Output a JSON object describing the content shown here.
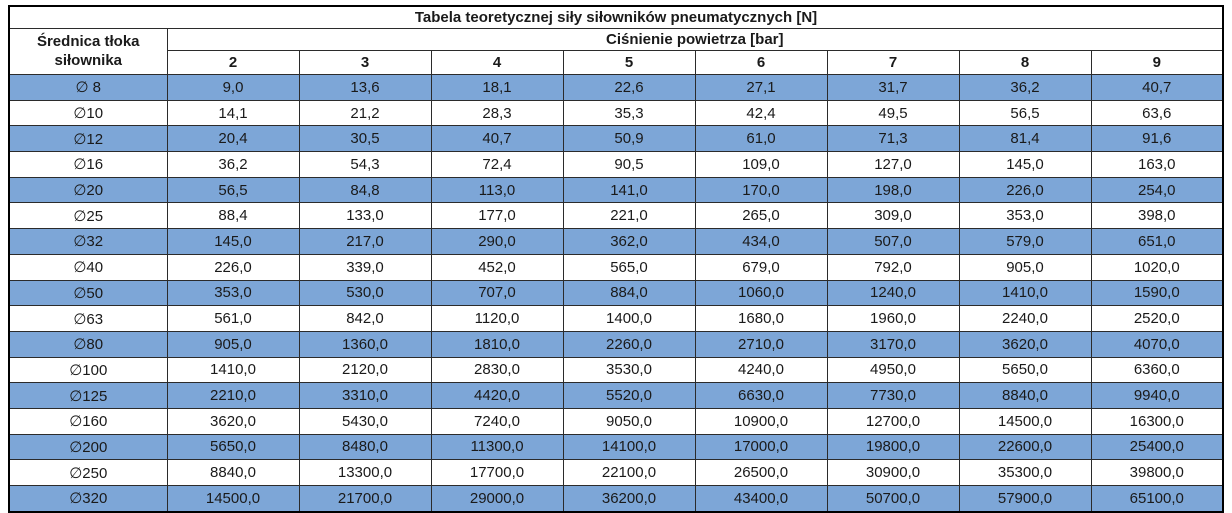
{
  "colors": {
    "highlight_row_bg": "#7DA6D7",
    "plain_row_bg": "#FFFFFF",
    "border": "#2B2B2B",
    "text": "#1A1A1A"
  },
  "chart_data": {
    "type": "table",
    "title": "Tabela teoretycznej siły siłowników pneumatycznych [N]",
    "row_header_label": "Średnica tłoka siłownika",
    "column_group_label": "Ciśnienie powietrza [bar]",
    "columns": [
      "2",
      "3",
      "4",
      "5",
      "6",
      "7",
      "8",
      "9"
    ],
    "rows": [
      {
        "label": "∅ 8",
        "values": [
          "9,0",
          "13,6",
          "18,1",
          "22,6",
          "27,1",
          "31,7",
          "36,2",
          "40,7"
        ]
      },
      {
        "label": "∅10",
        "values": [
          "14,1",
          "21,2",
          "28,3",
          "35,3",
          "42,4",
          "49,5",
          "56,5",
          "63,6"
        ]
      },
      {
        "label": "∅12",
        "values": [
          "20,4",
          "30,5",
          "40,7",
          "50,9",
          "61,0",
          "71,3",
          "81,4",
          "91,6"
        ]
      },
      {
        "label": "∅16",
        "values": [
          "36,2",
          "54,3",
          "72,4",
          "90,5",
          "109,0",
          "127,0",
          "145,0",
          "163,0"
        ]
      },
      {
        "label": "∅20",
        "values": [
          "56,5",
          "84,8",
          "113,0",
          "141,0",
          "170,0",
          "198,0",
          "226,0",
          "254,0"
        ]
      },
      {
        "label": "∅25",
        "values": [
          "88,4",
          "133,0",
          "177,0",
          "221,0",
          "265,0",
          "309,0",
          "353,0",
          "398,0"
        ]
      },
      {
        "label": "∅32",
        "values": [
          "145,0",
          "217,0",
          "290,0",
          "362,0",
          "434,0",
          "507,0",
          "579,0",
          "651,0"
        ]
      },
      {
        "label": "∅40",
        "values": [
          "226,0",
          "339,0",
          "452,0",
          "565,0",
          "679,0",
          "792,0",
          "905,0",
          "1020,0"
        ]
      },
      {
        "label": "∅50",
        "values": [
          "353,0",
          "530,0",
          "707,0",
          "884,0",
          "1060,0",
          "1240,0",
          "1410,0",
          "1590,0"
        ]
      },
      {
        "label": "∅63",
        "values": [
          "561,0",
          "842,0",
          "1120,0",
          "1400,0",
          "1680,0",
          "1960,0",
          "2240,0",
          "2520,0"
        ]
      },
      {
        "label": "∅80",
        "values": [
          "905,0",
          "1360,0",
          "1810,0",
          "2260,0",
          "2710,0",
          "3170,0",
          "3620,0",
          "4070,0"
        ]
      },
      {
        "label": "∅100",
        "values": [
          "1410,0",
          "2120,0",
          "2830,0",
          "3530,0",
          "4240,0",
          "4950,0",
          "5650,0",
          "6360,0"
        ]
      },
      {
        "label": "∅125",
        "values": [
          "2210,0",
          "3310,0",
          "4420,0",
          "5520,0",
          "6630,0",
          "7730,0",
          "8840,0",
          "9940,0"
        ]
      },
      {
        "label": "∅160",
        "values": [
          "3620,0",
          "5430,0",
          "7240,0",
          "9050,0",
          "10900,0",
          "12700,0",
          "14500,0",
          "16300,0"
        ]
      },
      {
        "label": "∅200",
        "values": [
          "5650,0",
          "8480,0",
          "11300,0",
          "14100,0",
          "17000,0",
          "19800,0",
          "22600,0",
          "25400,0"
        ]
      },
      {
        "label": "∅250",
        "values": [
          "8840,0",
          "13300,0",
          "17700,0",
          "22100,0",
          "26500,0",
          "30900,0",
          "35300,0",
          "39800,0"
        ]
      },
      {
        "label": "∅320",
        "values": [
          "14500,0",
          "21700,0",
          "29000,0",
          "36200,0",
          "43400,0",
          "50700,0",
          "57900,0",
          "65100,0"
        ]
      }
    ]
  }
}
